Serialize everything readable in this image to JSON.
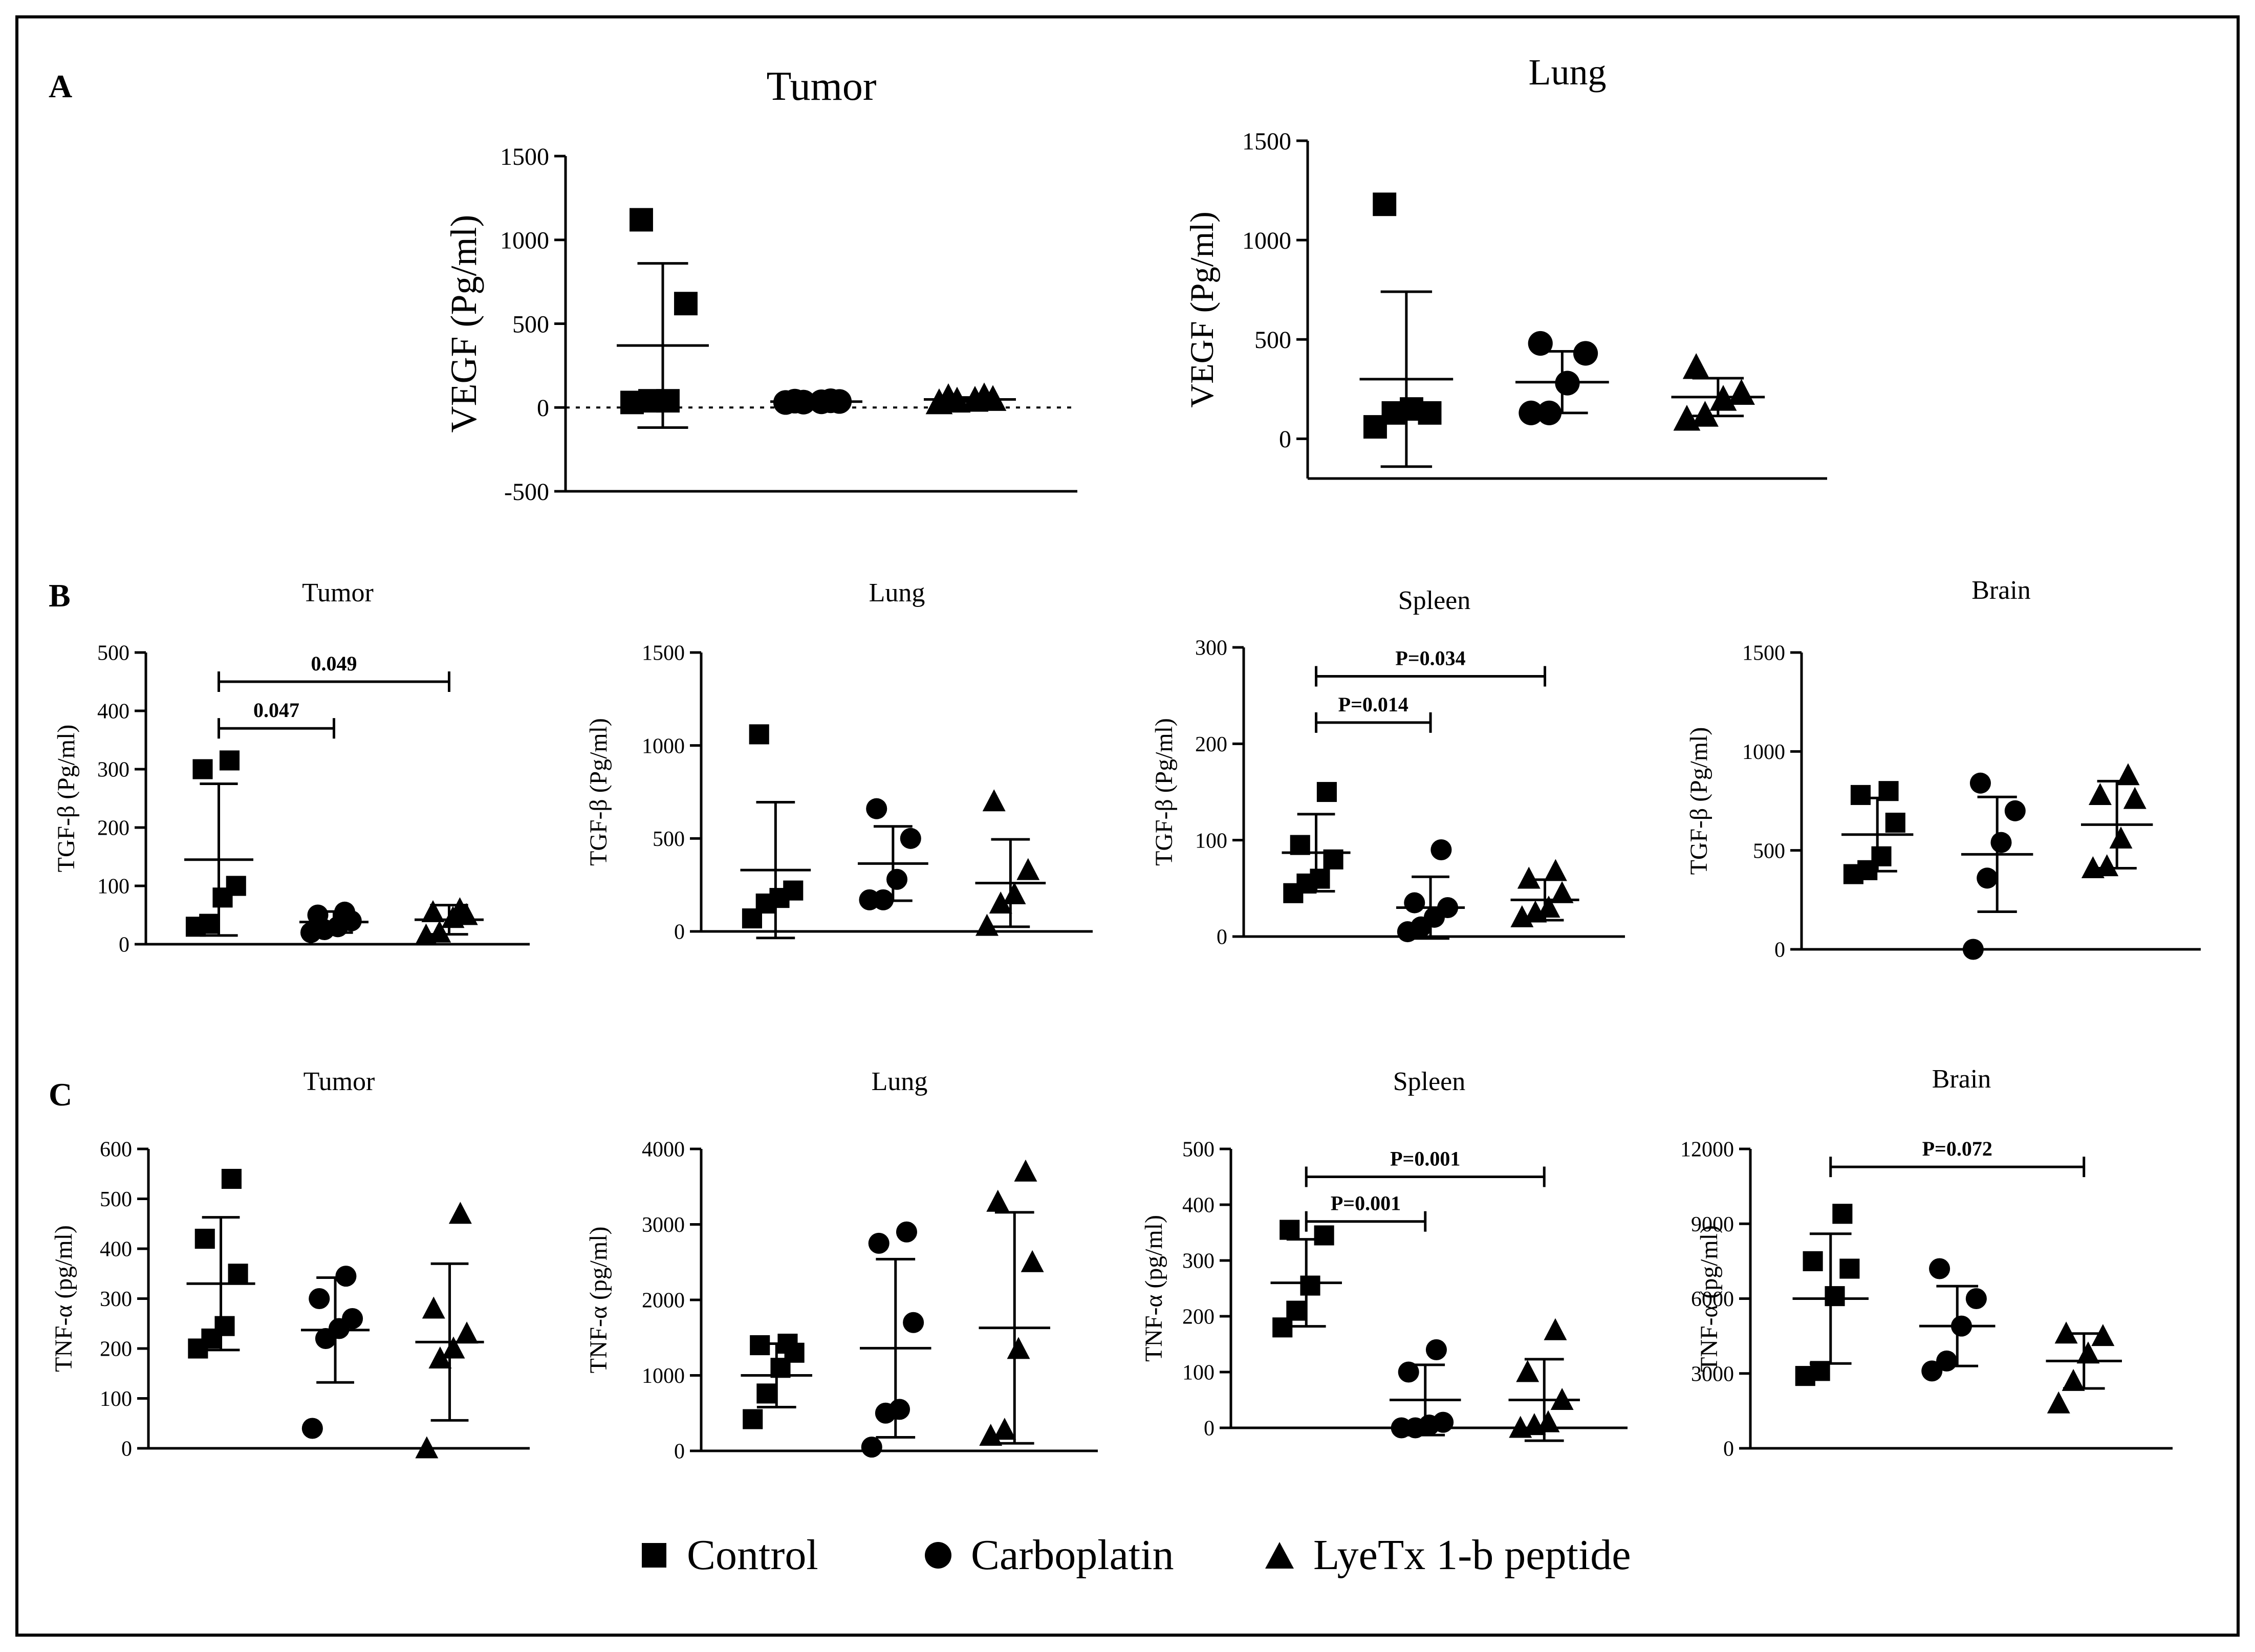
{
  "panel_labels": {
    "a": "A",
    "b": "B",
    "c": "C"
  },
  "legend": [
    {
      "label": "Control",
      "marker": "square"
    },
    {
      "label": "Carboplatin",
      "marker": "circle"
    },
    {
      "label": "LyeTx 1-b peptide",
      "marker": "triangle"
    }
  ],
  "chart_data": [
    {
      "id": "A-tumor",
      "type": "scatter",
      "title": "Tumor",
      "ylabel": "VEGF (Pg/ml)",
      "ylim": [
        -500,
        1500
      ],
      "yticks": [
        -500,
        0,
        500,
        1000,
        1500
      ],
      "zero_line": true,
      "groups": [
        {
          "name": "Control",
          "marker": "square",
          "values": [
            30,
            40,
            40,
            620,
            1120
          ],
          "mean": 370,
          "sd": 490
        },
        {
          "name": "Carboplatin",
          "marker": "circle",
          "values": [
            30,
            32,
            34,
            36,
            38,
            40
          ],
          "mean": 35,
          "sd": 4
        },
        {
          "name": "LyeTx 1-b peptide",
          "marker": "triangle",
          "values": [
            30,
            40,
            45,
            50,
            60,
            65
          ],
          "mean": 48,
          "sd": 12
        }
      ],
      "brackets": []
    },
    {
      "id": "A-lung",
      "type": "scatter",
      "title": "Lung",
      "ylabel": "VEGF (Pg/ml)",
      "ylim": [
        -200,
        1500
      ],
      "yticks": [
        0,
        500,
        1000,
        1500
      ],
      "groups": [
        {
          "name": "Control",
          "marker": "square",
          "values": [
            60,
            130,
            150,
            130,
            1180
          ],
          "mean": 300,
          "sd": 440
        },
        {
          "name": "Carboplatin",
          "marker": "circle",
          "values": [
            130,
            130,
            280,
            430,
            480
          ],
          "mean": 285,
          "sd": 155
        },
        {
          "name": "LyeTx 1-b peptide",
          "marker": "triangle",
          "values": [
            100,
            120,
            200,
            230,
            360
          ],
          "mean": 210,
          "sd": 95
        }
      ],
      "brackets": []
    },
    {
      "id": "B-tumor",
      "type": "scatter",
      "title": "Tumor",
      "ylabel": "TGF-β (Pg/ml)",
      "ylim": [
        0,
        500
      ],
      "yticks": [
        0,
        100,
        200,
        300,
        400,
        500
      ],
      "groups": [
        {
          "name": "Control",
          "marker": "square",
          "values": [
            30,
            35,
            80,
            100,
            300,
            315
          ],
          "mean": 145,
          "sd": 130
        },
        {
          "name": "Carboplatin",
          "marker": "circle",
          "values": [
            20,
            25,
            30,
            40,
            50,
            55
          ],
          "mean": 38,
          "sd": 18
        },
        {
          "name": "LyeTx 1-b peptide",
          "marker": "triangle",
          "values": [
            15,
            20,
            45,
            50,
            55,
            60
          ],
          "mean": 42,
          "sd": 25
        }
      ],
      "brackets": [
        {
          "from": 0,
          "to": 1,
          "label": "0.047"
        },
        {
          "from": 0,
          "to": 2,
          "label": "0.049"
        }
      ]
    },
    {
      "id": "B-lung",
      "type": "scatter",
      "title": "Lung",
      "ylabel": "TGF-β (Pg/ml)",
      "ylim": [
        0,
        1500
      ],
      "yticks": [
        0,
        500,
        1000,
        1500
      ],
      "groups": [
        {
          "name": "Control",
          "marker": "square",
          "values": [
            70,
            150,
            180,
            220,
            1060
          ],
          "mean": 330,
          "sd": 365
        },
        {
          "name": "Carboplatin",
          "marker": "circle",
          "values": [
            170,
            170,
            280,
            500,
            660
          ],
          "mean": 365,
          "sd": 200
        },
        {
          "name": "LyeTx 1-b peptide",
          "marker": "triangle",
          "values": [
            30,
            150,
            200,
            330,
            700
          ],
          "mean": 260,
          "sd": 235
        }
      ],
      "brackets": []
    },
    {
      "id": "B-spleen",
      "type": "scatter",
      "title": "Spleen",
      "ylabel": "TGF-β (Pg/ml)",
      "ylim": [
        0,
        300
      ],
      "yticks": [
        0,
        100,
        200,
        300
      ],
      "groups": [
        {
          "name": "Control",
          "marker": "square",
          "values": [
            45,
            55,
            60,
            80,
            95,
            150
          ],
          "mean": 87,
          "sd": 40
        },
        {
          "name": "Carboplatin",
          "marker": "circle",
          "values": [
            5,
            10,
            20,
            30,
            35,
            90
          ],
          "mean": 30,
          "sd": 32
        },
        {
          "name": "LyeTx 1-b peptide",
          "marker": "triangle",
          "values": [
            20,
            25,
            30,
            45,
            60,
            68
          ],
          "mean": 38,
          "sd": 21
        }
      ],
      "brackets": [
        {
          "from": 0,
          "to": 1,
          "label": "P=0.014"
        },
        {
          "from": 0,
          "to": 2,
          "label": "P=0.034"
        }
      ]
    },
    {
      "id": "B-brain",
      "type": "scatter",
      "title": "Brain",
      "ylabel": "TGF-β (Pg/ml)",
      "ylim": [
        0,
        1500
      ],
      "yticks": [
        0,
        500,
        1000,
        1500
      ],
      "groups": [
        {
          "name": "Control",
          "marker": "square",
          "values": [
            380,
            400,
            470,
            640,
            780,
            800
          ],
          "mean": 580,
          "sd": 185
        },
        {
          "name": "Carboplatin",
          "marker": "circle",
          "values": [
            0,
            360,
            540,
            700,
            840
          ],
          "mean": 480,
          "sd": 290
        },
        {
          "name": "LyeTx 1-b peptide",
          "marker": "triangle",
          "values": [
            410,
            420,
            560,
            760,
            780,
            880
          ],
          "mean": 630,
          "sd": 220
        }
      ],
      "brackets": []
    },
    {
      "id": "C-tumor",
      "type": "scatter",
      "title": "Tumor",
      "ylabel": "TNF-α (pg/ml)",
      "ylim": [
        0,
        600
      ],
      "yticks": [
        0,
        100,
        200,
        300,
        400,
        500,
        600
      ],
      "groups": [
        {
          "name": "Control",
          "marker": "square",
          "values": [
            200,
            220,
            245,
            350,
            420,
            540
          ],
          "mean": 330,
          "sd": 133
        },
        {
          "name": "Carboplatin",
          "marker": "circle",
          "values": [
            40,
            220,
            240,
            260,
            300,
            345
          ],
          "mean": 237,
          "sd": 105
        },
        {
          "name": "LyeTx 1-b peptide",
          "marker": "triangle",
          "values": [
            0,
            180,
            200,
            230,
            280,
            470
          ],
          "mean": 213,
          "sd": 157
        }
      ],
      "brackets": []
    },
    {
      "id": "C-lung",
      "type": "scatter",
      "title": "Lung",
      "ylabel": "TNF-α (pg/ml)",
      "ylim": [
        0,
        4000
      ],
      "yticks": [
        0,
        1000,
        2000,
        3000,
        4000
      ],
      "groups": [
        {
          "name": "Control",
          "marker": "square",
          "values": [
            420,
            760,
            1100,
            1300,
            1400,
            1420
          ],
          "mean": 1000,
          "sd": 420
        },
        {
          "name": "Carboplatin",
          "marker": "circle",
          "values": [
            50,
            500,
            550,
            1700,
            2750,
            2900
          ],
          "mean": 1360,
          "sd": 1180
        },
        {
          "name": "LyeTx 1-b peptide",
          "marker": "triangle",
          "values": [
            200,
            280,
            1350,
            2500,
            3300,
            3700
          ],
          "mean": 1630,
          "sd": 1530
        }
      ],
      "brackets": []
    },
    {
      "id": "C-spleen",
      "type": "scatter",
      "title": "Spleen",
      "ylabel": "TNF-α (pg/ml)",
      "ylim": [
        0,
        500
      ],
      "yticks": [
        0,
        100,
        200,
        300,
        400,
        500
      ],
      "groups": [
        {
          "name": "Control",
          "marker": "square",
          "values": [
            180,
            210,
            255,
            345,
            355
          ],
          "mean": 260,
          "sd": 78
        },
        {
          "name": "Carboplatin",
          "marker": "circle",
          "values": [
            0,
            0,
            5,
            10,
            100,
            140
          ],
          "mean": 50,
          "sd": 63
        },
        {
          "name": "LyeTx 1-b peptide",
          "marker": "triangle",
          "values": [
            0,
            5,
            10,
            50,
            100,
            175
          ],
          "mean": 50,
          "sd": 73
        }
      ],
      "brackets": [
        {
          "from": 0,
          "to": 1,
          "label": "P=0.001"
        },
        {
          "from": 0,
          "to": 2,
          "label": "P=0.001"
        }
      ]
    },
    {
      "id": "C-brain",
      "type": "scatter",
      "title": "Brain",
      "ylabel": "TNF-α (pg/ml)",
      "ylim": [
        0,
        12000
      ],
      "yticks": [
        0,
        3000,
        6000,
        9000,
        12000
      ],
      "groups": [
        {
          "name": "Control",
          "marker": "square",
          "values": [
            2900,
            3100,
            6100,
            7200,
            7500,
            9400
          ],
          "mean": 6000,
          "sd": 2600
        },
        {
          "name": "Carboplatin",
          "marker": "circle",
          "values": [
            3100,
            3500,
            4900,
            6000,
            7200
          ],
          "mean": 4900,
          "sd": 1600
        },
        {
          "name": "LyeTx 1-b peptide",
          "marker": "triangle",
          "values": [
            1800,
            2700,
            3800,
            4500,
            4600
          ],
          "mean": 3500,
          "sd": 1100
        }
      ],
      "brackets": [
        {
          "from": 0,
          "to": 2,
          "label": "P=0.072"
        }
      ]
    }
  ]
}
